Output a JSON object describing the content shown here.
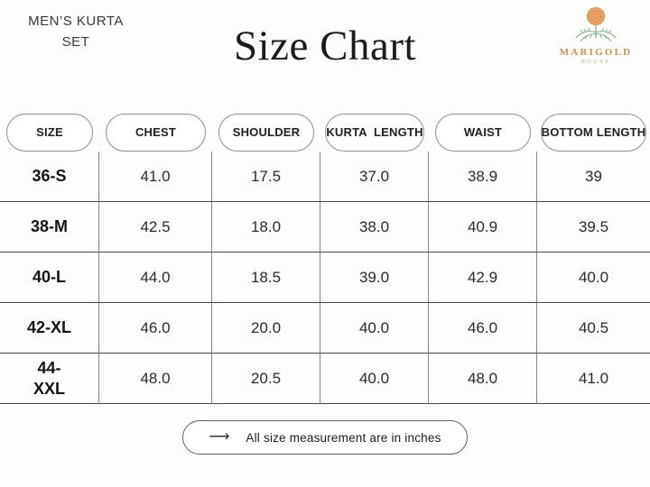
{
  "header": {
    "product_title": "MEN’S KURTA SET",
    "title": "Size Chart"
  },
  "logo": {
    "name": "MARIGOLD",
    "subtitle": "HOUSE",
    "colors": {
      "flower": "#e09a5d",
      "flower_stroke": "#c97f3f",
      "leaves": "#7fa98c",
      "wordmark": "#cf8d4f"
    }
  },
  "chart_data": {
    "type": "table",
    "title": "Size Chart",
    "subtitle": "MEN’S KURTA SET",
    "columns": [
      "SIZE",
      "CHEST",
      "SHOULDER",
      "KURTA  LENGTH",
      "WAIST",
      "BOTTOM LENGTH"
    ],
    "rows": [
      [
        "36-S",
        "41.0",
        "17.5",
        "37.0",
        "38.9",
        "39"
      ],
      [
        "38-M",
        "42.5",
        "18.0",
        "38.0",
        "40.9",
        "39.5"
      ],
      [
        "40-L",
        "44.0",
        "18.5",
        "39.0",
        "42.9",
        "40.0"
      ],
      [
        "42-XL",
        "46.0",
        "20.0",
        "40.0",
        "46.0",
        "40.5"
      ],
      [
        "44-\nXXL",
        "48.0",
        "20.5",
        "40.0",
        "48.0",
        "41.0"
      ]
    ],
    "units_note": "All size measurement are in inches"
  },
  "footer": {
    "arrow": "⟶",
    "note": "All size measurement are in inches"
  }
}
